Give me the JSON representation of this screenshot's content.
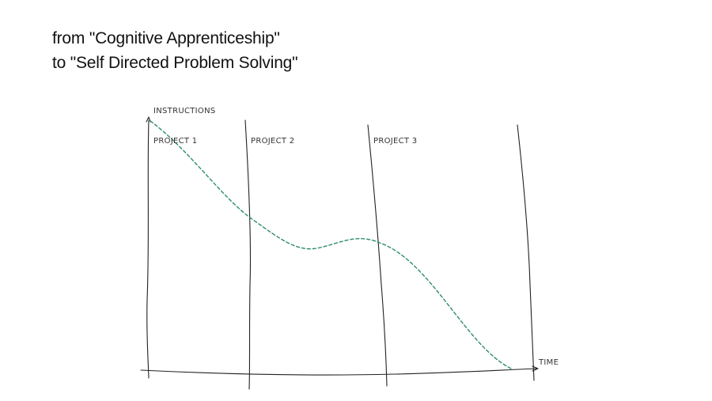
{
  "title": {
    "line1": "from \"Cognitive Apprenticeship\"",
    "line2": "to \"Self Directed Problem Solving\""
  },
  "diagram": {
    "y_axis_label": "INSTRUCTIONS",
    "x_axis_label": "TIME",
    "projects": [
      "PROJECT 1",
      "PROJECT 2",
      "PROJECT 3"
    ],
    "trend_color": "#2e8b6e",
    "line_color": "#222222"
  }
}
